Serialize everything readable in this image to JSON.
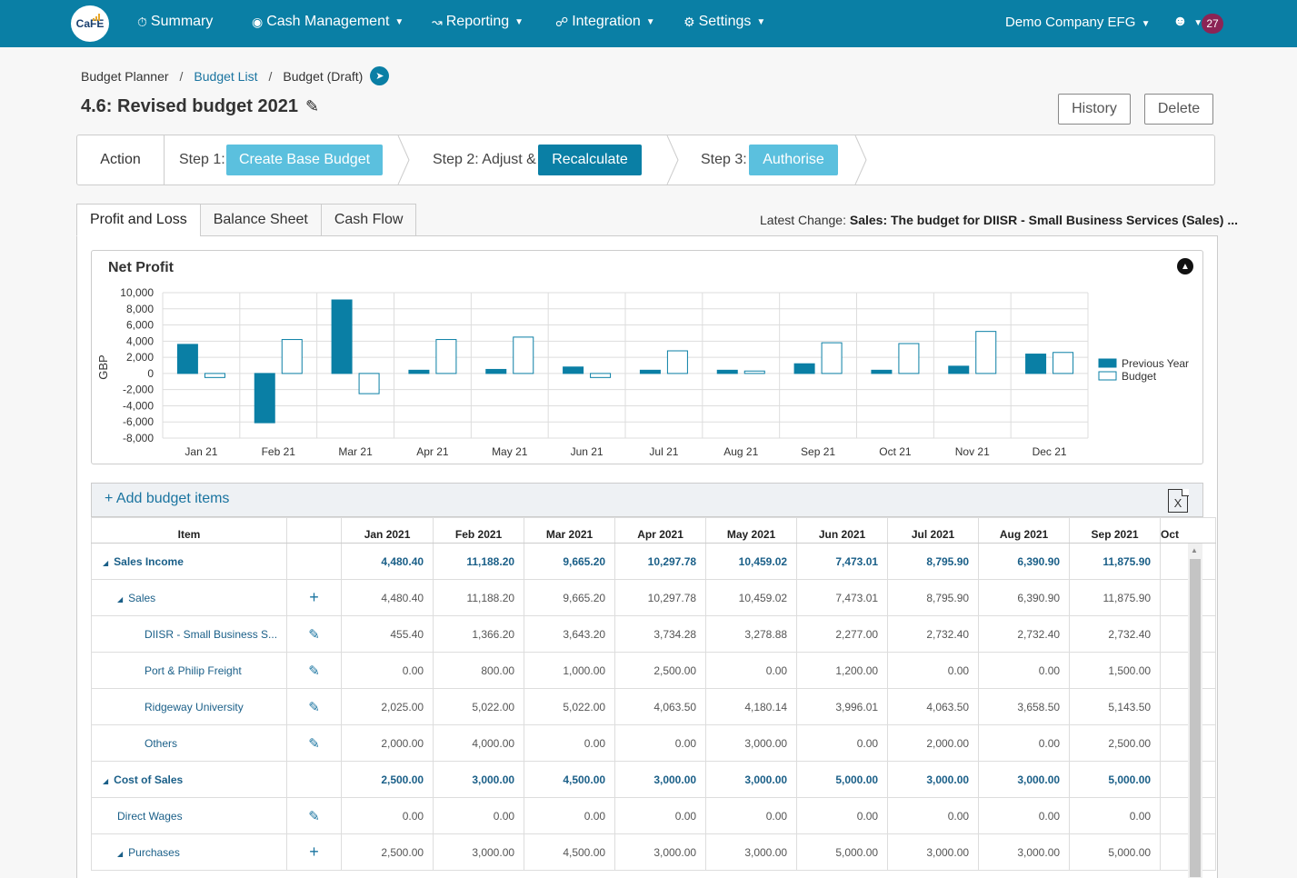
{
  "nav": {
    "logo_text": "CaFE",
    "items": [
      {
        "label": "Summary",
        "icon": "dashboard-icon"
      },
      {
        "label": "Cash Management",
        "icon": "compass-icon"
      },
      {
        "label": "Reporting",
        "icon": "line-chart-icon"
      },
      {
        "label": "Integration",
        "icon": "link-icon"
      },
      {
        "label": "Settings",
        "icon": "gear-icon"
      }
    ],
    "company": "Demo Company EFG",
    "notifications": "27"
  },
  "breadcrumb": {
    "root": "Budget Planner",
    "list": "Budget List",
    "current": "Budget (Draft)"
  },
  "page": {
    "title": "4.6: Revised budget 2021",
    "history_label": "History",
    "delete_label": "Delete"
  },
  "steps": {
    "action_label": "Action",
    "step1_label": "Step 1:",
    "step1_button": "Create Base Budget",
    "step2_label": "Step 2: Adjust &",
    "step2_button": "Recalculate",
    "step3_label": "Step 3:",
    "step3_button": "Authorise"
  },
  "tabs": [
    "Profit and Loss",
    "Balance Sheet",
    "Cash Flow"
  ],
  "latest_change": {
    "label": "Latest Change:",
    "value": "Sales: The budget for DIISR - Small Business Services (Sales) ..."
  },
  "colors": {
    "primary": "#0a7fa5",
    "step_light": "#5bc0de",
    "badge": "#8b2455"
  },
  "chart_data": {
    "type": "bar",
    "title": "Net Profit",
    "ylabel": "GBP",
    "xlabel": "",
    "categories": [
      "Jan 21",
      "Feb 21",
      "Mar 21",
      "Apr 21",
      "May 21",
      "Jun 21",
      "Jul 21",
      "Aug 21",
      "Sep 21",
      "Oct 21",
      "Nov 21",
      "Dec 21"
    ],
    "series": [
      {
        "name": "Previous Year",
        "values": [
          3600,
          -6100,
          9100,
          400,
          500,
          800,
          400,
          400,
          1200,
          400,
          900,
          2400
        ],
        "style": "filled"
      },
      {
        "name": "Budget",
        "values": [
          -500,
          4200,
          -2500,
          4200,
          4500,
          -500,
          2800,
          300,
          3800,
          3700,
          5200,
          2600
        ],
        "style": "outline"
      }
    ],
    "ylim": [
      -8000,
      10000
    ],
    "yticks": [
      "10,000",
      "8,000",
      "6,000",
      "4,000",
      "2,000",
      "0",
      "-2,000",
      "-4,000",
      "-6,000",
      "-8,000"
    ],
    "grid": true,
    "legend": "right"
  },
  "grid": {
    "add_label": "+ Add budget items",
    "columns": [
      "Item",
      "",
      "Jan 2021",
      "Feb 2021",
      "Mar 2021",
      "Apr 2021",
      "May 2021",
      "Jun 2021",
      "Jul 2021",
      "Aug 2021",
      "Sep 2021",
      "Oct"
    ],
    "rows": [
      {
        "name": "Sales Income",
        "level": 0,
        "group": true,
        "expand": true,
        "action": "",
        "values": [
          "4,480.40",
          "11,188.20",
          "9,665.20",
          "10,297.78",
          "10,459.02",
          "7,473.01",
          "8,795.90",
          "6,390.90",
          "11,875.90"
        ]
      },
      {
        "name": "Sales",
        "level": 1,
        "group": false,
        "expand": true,
        "action": "plus",
        "values": [
          "4,480.40",
          "11,188.20",
          "9,665.20",
          "10,297.78",
          "10,459.02",
          "7,473.01",
          "8,795.90",
          "6,390.90",
          "11,875.90"
        ]
      },
      {
        "name": "DIISR - Small Business S...",
        "level": 2,
        "group": false,
        "expand": false,
        "action": "edit",
        "values": [
          "455.40",
          "1,366.20",
          "3,643.20",
          "3,734.28",
          "3,278.88",
          "2,277.00",
          "2,732.40",
          "2,732.40",
          "2,732.40"
        ]
      },
      {
        "name": "Port & Philip Freight",
        "level": 2,
        "group": false,
        "expand": false,
        "action": "edit",
        "values": [
          "0.00",
          "800.00",
          "1,000.00",
          "2,500.00",
          "0.00",
          "1,200.00",
          "0.00",
          "0.00",
          "1,500.00"
        ]
      },
      {
        "name": "Ridgeway University",
        "level": 2,
        "group": false,
        "expand": false,
        "action": "edit",
        "values": [
          "2,025.00",
          "5,022.00",
          "5,022.00",
          "4,063.50",
          "4,180.14",
          "3,996.01",
          "4,063.50",
          "3,658.50",
          "5,143.50"
        ]
      },
      {
        "name": "Others",
        "level": 2,
        "group": false,
        "expand": false,
        "action": "edit",
        "values": [
          "2,000.00",
          "4,000.00",
          "0.00",
          "0.00",
          "3,000.00",
          "0.00",
          "2,000.00",
          "0.00",
          "2,500.00"
        ]
      },
      {
        "name": "Cost of Sales",
        "level": 0,
        "group": true,
        "expand": true,
        "action": "",
        "values": [
          "2,500.00",
          "3,000.00",
          "4,500.00",
          "3,000.00",
          "3,000.00",
          "5,000.00",
          "3,000.00",
          "3,000.00",
          "5,000.00"
        ]
      },
      {
        "name": "Direct Wages",
        "level": 1,
        "group": false,
        "expand": false,
        "action": "edit",
        "values": [
          "0.00",
          "0.00",
          "0.00",
          "0.00",
          "0.00",
          "0.00",
          "0.00",
          "0.00",
          "0.00"
        ]
      },
      {
        "name": "Purchases",
        "level": 1,
        "group": false,
        "expand": true,
        "action": "plus",
        "values": [
          "2,500.00",
          "3,000.00",
          "4,500.00",
          "3,000.00",
          "3,000.00",
          "5,000.00",
          "3,000.00",
          "3,000.00",
          "5,000.00"
        ]
      }
    ]
  }
}
